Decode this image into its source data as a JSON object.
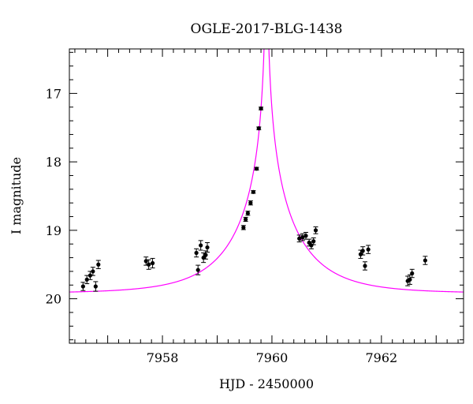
{
  "chart_data": {
    "type": "scatter",
    "title": "OGLE-2017-BLG-1438",
    "xlabel": "HJD - 2450000",
    "ylabel": "I magnitude",
    "xlim": [
      7956.3,
      7963.5
    ],
    "ylim": [
      20.65,
      16.35
    ],
    "y_inverted": true,
    "x_major_ticks": [
      7958,
      7960,
      7962
    ],
    "x_tick_labels": [
      "7958",
      "7960",
      "7962"
    ],
    "y_major_ticks": [
      17,
      18,
      19,
      20
    ],
    "y_tick_labels": [
      "17",
      "18",
      "19",
      "20"
    ],
    "grid": false,
    "colors": {
      "data": "#000000",
      "model": "#ff00ff"
    },
    "series": [
      {
        "kind": "points",
        "x": [
          7956.55,
          7956.62,
          7956.68,
          7956.73,
          7956.78,
          7956.83,
          7957.7,
          7957.75,
          7957.82,
          7958.62,
          7958.65,
          7958.7,
          7958.75,
          7958.79,
          7958.82,
          7959.48,
          7959.52,
          7959.56,
          7959.61,
          7959.66,
          7959.72,
          7959.76,
          7959.8,
          7960.5,
          7960.56,
          7960.62,
          7960.68,
          7960.72,
          7960.76,
          7960.8,
          7961.62,
          7961.66,
          7961.7,
          7961.76,
          7962.48,
          7962.52,
          7962.56,
          7962.8
        ],
        "y": [
          19.82,
          19.72,
          19.66,
          19.6,
          19.82,
          19.5,
          19.45,
          19.5,
          19.48,
          19.33,
          19.58,
          19.22,
          19.4,
          19.36,
          19.25,
          18.96,
          18.84,
          18.75,
          18.6,
          18.44,
          18.1,
          17.51,
          17.22,
          19.12,
          19.1,
          19.08,
          19.18,
          19.22,
          19.16,
          19.0,
          19.35,
          19.3,
          19.52,
          19.28,
          19.74,
          19.72,
          19.63,
          19.44
        ],
        "err": [
          0.06,
          0.06,
          0.06,
          0.06,
          0.07,
          0.06,
          0.06,
          0.07,
          0.07,
          0.06,
          0.07,
          0.07,
          0.07,
          0.06,
          0.07,
          0.03,
          0.03,
          0.03,
          0.03,
          0.02,
          0.02,
          0.02,
          0.02,
          0.05,
          0.05,
          0.05,
          0.05,
          0.05,
          0.05,
          0.05,
          0.06,
          0.06,
          0.06,
          0.06,
          0.07,
          0.07,
          0.06,
          0.06
        ]
      },
      {
        "kind": "model",
        "baseline": 19.92,
        "t0": 7959.9,
        "u0": 0.005,
        "tE": 1.2
      }
    ]
  }
}
